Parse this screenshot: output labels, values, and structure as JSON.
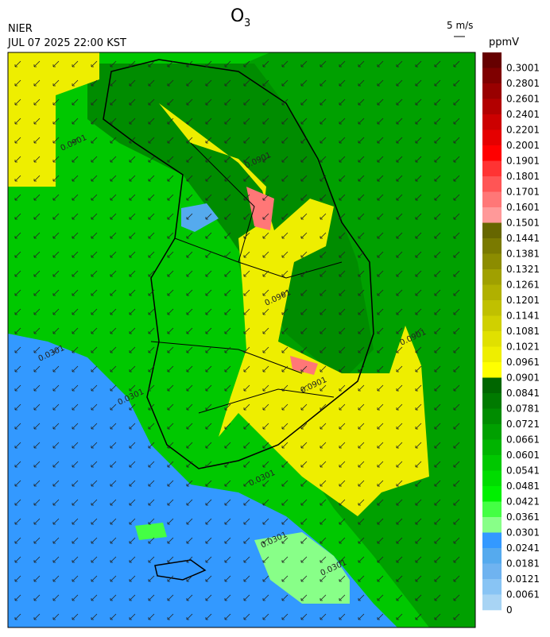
{
  "header": {
    "title_main": "O",
    "title_sub": "3",
    "source": "NIER",
    "datetime": "JUL 07 2025 22:00 KST",
    "wind_scale": "5 m/s"
  },
  "colorbar": {
    "unit": "ppmV",
    "labels": [
      "0.3001",
      "0.2801",
      "0.2601",
      "0.2401",
      "0.2201",
      "0.2001",
      "0.1901",
      "0.1801",
      "0.1701",
      "0.1601",
      "0.1501",
      "0.1441",
      "0.1381",
      "0.1321",
      "0.1261",
      "0.1201",
      "0.1141",
      "0.1081",
      "0.1021",
      "0.0961",
      "0.0901",
      "0.0841",
      "0.0781",
      "0.0721",
      "0.0661",
      "0.0601",
      "0.0541",
      "0.0481",
      "0.0421",
      "0.0361",
      "0.0301",
      "0.0241",
      "0.0181",
      "0.0121",
      "0.0061",
      "0"
    ],
    "colors": [
      "#660000",
      "#7f0000",
      "#990000",
      "#b20000",
      "#cc0000",
      "#e50000",
      "#ff0000",
      "#ff3333",
      "#ff5555",
      "#ff7777",
      "#ff9999",
      "#666600",
      "#7a7a00",
      "#8c8c00",
      "#a0a000",
      "#b0b000",
      "#c0c000",
      "#d0d000",
      "#e0e000",
      "#eeee00",
      "#ffff00",
      "#006600",
      "#007a00",
      "#008c00",
      "#00a000",
      "#00b400",
      "#00c800",
      "#00dc00",
      "#00f000",
      "#44ff44",
      "#88ff88",
      "#3399ff",
      "#55aaee",
      "#6fb3f0",
      "#88c4f4",
      "#a8d4f4"
    ]
  },
  "contour_labels": [
    "0.0901",
    "0.0901",
    "0.0901",
    "0.0901",
    "0.0901",
    "0.0301",
    "0.0301",
    "0.0301",
    "0.0301",
    "0.0301"
  ]
}
